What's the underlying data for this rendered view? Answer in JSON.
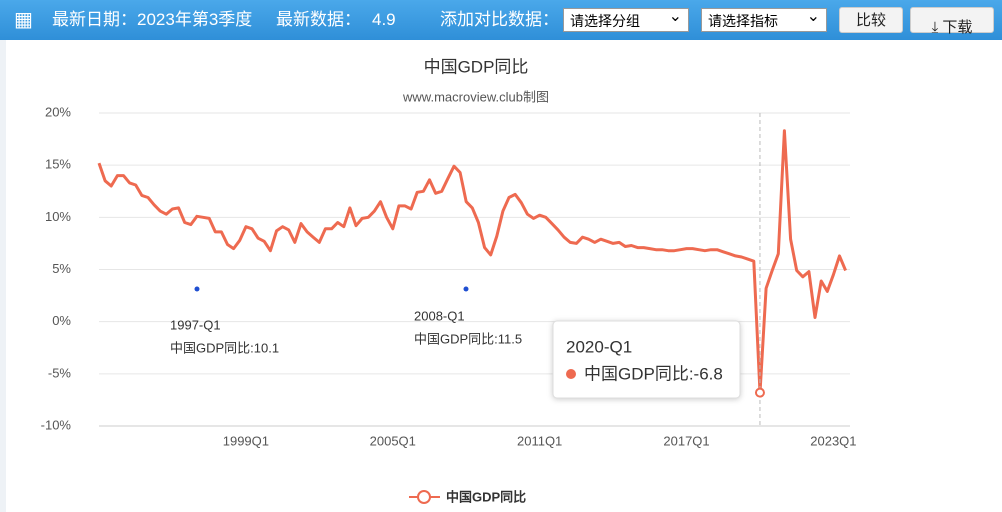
{
  "header": {
    "latest_date": "最新日期：2023年第3季度",
    "latest_data_label": "最新数据：",
    "latest_data_value": "4.9",
    "compare_label": "添加对比数据：",
    "group_select": "请选择分组",
    "indicator_select": "请选择指标",
    "compare_button": "比较",
    "download_button": "下载"
  },
  "chart_data": {
    "type": "line",
    "title": "中国GDP同比",
    "subtitle": "www.macroview.club制图",
    "categories": [
      null,
      null,
      null,
      null,
      null,
      null,
      null,
      null,
      null,
      null,
      null,
      null,
      null,
      null,
      null,
      null,
      null,
      null,
      null,
      null,
      null,
      null,
      null,
      null,
      "1999Q1",
      null,
      null,
      null,
      null,
      null,
      null,
      null,
      null,
      null,
      null,
      null,
      null,
      null,
      null,
      null,
      null,
      null,
      null,
      null,
      null,
      null,
      null,
      null,
      "2005Q1",
      null,
      null,
      null,
      null,
      null,
      null,
      null,
      null,
      null,
      null,
      null,
      null,
      null,
      null,
      null,
      null,
      null,
      null,
      null,
      null,
      null,
      null,
      null,
      "2011Q1",
      null,
      null,
      null,
      null,
      null,
      null,
      null,
      null,
      null,
      null,
      null,
      null,
      null,
      null,
      null,
      null,
      null,
      null,
      null,
      null,
      null,
      null,
      null,
      "2017Q1",
      null,
      null,
      null,
      null,
      null,
      null,
      null,
      null,
      null,
      null,
      null,
      null,
      null,
      null,
      null,
      null,
      null,
      null,
      null,
      null,
      null,
      null,
      null,
      "2023Q1",
      null,
      null
    ],
    "series": [
      {
        "name": "中国GDP同比",
        "color": "#ee6a50",
        "values": [
          15.2,
          13.5,
          13.0,
          14.0,
          14.0,
          13.3,
          13.1,
          12.1,
          11.9,
          11.2,
          10.6,
          10.3,
          10.8,
          10.9,
          9.5,
          9.3,
          10.1,
          10.0,
          9.9,
          8.6,
          8.6,
          7.4,
          7.0,
          7.8,
          9.1,
          8.9,
          8.0,
          7.7,
          6.8,
          8.7,
          9.1,
          8.8,
          7.6,
          9.4,
          8.6,
          8.1,
          7.6,
          8.9,
          8.9,
          9.5,
          9.1,
          10.9,
          9.2,
          9.9,
          10.0,
          10.6,
          11.5,
          10.0,
          8.9,
          11.1,
          11.1,
          10.8,
          12.4,
          12.5,
          13.6,
          12.3,
          12.5,
          13.7,
          14.9,
          14.3,
          11.5,
          10.9,
          9.5,
          7.1,
          6.4,
          8.2,
          10.6,
          11.9,
          12.2,
          11.4,
          10.3,
          9.9,
          10.2,
          10.0,
          9.4,
          8.8,
          8.1,
          7.6,
          7.5,
          8.1,
          7.9,
          7.6,
          7.9,
          7.7,
          7.5,
          7.6,
          7.2,
          7.3,
          7.1,
          7.1,
          7.0,
          6.9,
          6.9,
          6.8,
          6.8,
          6.9,
          7.0,
          7.0,
          6.9,
          6.8,
          6.9,
          6.9,
          6.7,
          6.5,
          6.3,
          6.2,
          6.0,
          5.8,
          -6.8,
          3.2,
          4.9,
          6.5,
          18.3,
          7.9,
          4.9,
          4.3,
          4.8,
          0.4,
          3.9,
          2.9,
          4.5,
          6.3,
          4.9
        ]
      }
    ],
    "ylim": [
      -10,
      20
    ],
    "yticks": [
      {
        "value": -10,
        "label": "-10%"
      },
      {
        "value": -5,
        "label": "-5%"
      },
      {
        "value": 0,
        "label": "0%"
      },
      {
        "value": 5,
        "label": "5%"
      },
      {
        "value": 10,
        "label": "10%"
      },
      {
        "value": 15,
        "label": "15%"
      },
      {
        "value": 20,
        "label": "20%"
      }
    ],
    "grid": true,
    "annotations": [
      {
        "title": "1997-Q1",
        "text": "中国GDP同比:10.1"
      },
      {
        "title": "2008-Q1",
        "text": "中国GDP同比:11.5"
      }
    ],
    "tooltip": {
      "title": "2020-Q1",
      "text": "中国GDP同比:-6.8"
    }
  }
}
